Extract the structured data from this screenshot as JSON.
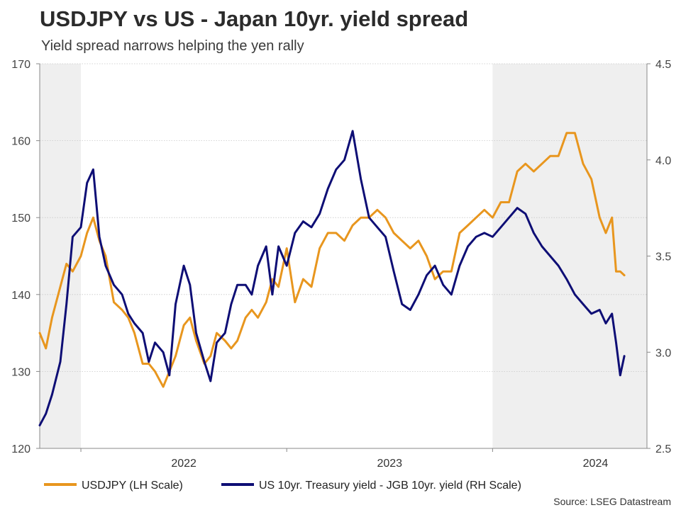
{
  "chart_data": {
    "type": "line",
    "title": "USDJPY vs US - Japan 10yr. yield spread",
    "subtitle": "Yield spread narrows helping the yen rally",
    "source": "Source: LSEG Datastream",
    "x_start": 2021.8,
    "x_end": 2024.75,
    "x_ticks": [
      {
        "label": "2022",
        "value": 2022.0
      },
      {
        "label": "2023",
        "value": 2023.0
      },
      {
        "label": "2024",
        "value": 2024.0
      }
    ],
    "shaded_periods": [
      [
        2021.8,
        2022.0
      ],
      [
        2024.0,
        2024.75
      ]
    ],
    "y_left": {
      "label": "",
      "min": 120,
      "max": 170,
      "ticks": [
        120,
        130,
        140,
        150,
        160,
        170
      ],
      "tick_labels": [
        "120",
        "130",
        "140",
        "150",
        "160",
        "170"
      ]
    },
    "y_right": {
      "label": "",
      "min": 2.5,
      "max": 4.5,
      "ticks": [
        2.5,
        3.0,
        3.5,
        4.0,
        4.5
      ],
      "tick_labels": [
        "2.5",
        "3.0",
        "3.5",
        "4.0",
        "4.5"
      ]
    },
    "grid": true,
    "legend_position": "bottom",
    "series": [
      {
        "name": "USDJPY (LH Scale)",
        "axis": "left",
        "color": "#e8961e",
        "x": [
          2021.8,
          2021.83,
          2021.86,
          2021.9,
          2021.93,
          2021.96,
          2022.0,
          2022.03,
          2022.06,
          2022.09,
          2022.12,
          2022.16,
          2022.2,
          2022.23,
          2022.26,
          2022.3,
          2022.33,
          2022.36,
          2022.4,
          2022.43,
          2022.46,
          2022.5,
          2022.53,
          2022.56,
          2022.6,
          2022.63,
          2022.66,
          2022.7,
          2022.73,
          2022.76,
          2022.8,
          2022.83,
          2022.86,
          2022.9,
          2022.93,
          2022.96,
          2023.0,
          2023.04,
          2023.08,
          2023.12,
          2023.16,
          2023.2,
          2023.24,
          2023.28,
          2023.32,
          2023.36,
          2023.4,
          2023.44,
          2023.48,
          2023.52,
          2023.56,
          2023.6,
          2023.64,
          2023.68,
          2023.72,
          2023.76,
          2023.8,
          2023.84,
          2023.88,
          2023.92,
          2023.96,
          2024.0,
          2024.04,
          2024.08,
          2024.12,
          2024.16,
          2024.2,
          2024.24,
          2024.28,
          2024.32,
          2024.36,
          2024.4,
          2024.44,
          2024.48,
          2024.52,
          2024.55,
          2024.58,
          2024.6,
          2024.62,
          2024.64
        ],
        "values": [
          135,
          133,
          137,
          141,
          144,
          143,
          145,
          148,
          150,
          147,
          145,
          139,
          138,
          137,
          135,
          131,
          131,
          130,
          128,
          130,
          132,
          136,
          137,
          134,
          131,
          132,
          135,
          134,
          133,
          134,
          137,
          138,
          137,
          139,
          142,
          141,
          146,
          139,
          142,
          141,
          146,
          148,
          148,
          147,
          149,
          150,
          150,
          151,
          150,
          148,
          147,
          146,
          147,
          145,
          142,
          143,
          143,
          148,
          149,
          150,
          151,
          150,
          152,
          152,
          156,
          157,
          156,
          157,
          158,
          158,
          161,
          161,
          157,
          155,
          150,
          148,
          150,
          143,
          143,
          142.5
        ]
      },
      {
        "name": "US 10yr. Treasury yield - JGB 10yr. yield (RH Scale)",
        "axis": "right",
        "color": "#0e0e75",
        "x": [
          2021.8,
          2021.83,
          2021.86,
          2021.9,
          2021.93,
          2021.96,
          2022.0,
          2022.03,
          2022.06,
          2022.09,
          2022.12,
          2022.16,
          2022.2,
          2022.23,
          2022.26,
          2022.3,
          2022.33,
          2022.36,
          2022.4,
          2022.43,
          2022.46,
          2022.5,
          2022.53,
          2022.56,
          2022.6,
          2022.63,
          2022.66,
          2022.7,
          2022.73,
          2022.76,
          2022.8,
          2022.83,
          2022.86,
          2022.9,
          2022.93,
          2022.96,
          2023.0,
          2023.04,
          2023.08,
          2023.12,
          2023.16,
          2023.2,
          2023.24,
          2023.28,
          2023.32,
          2023.36,
          2023.4,
          2023.44,
          2023.48,
          2023.52,
          2023.56,
          2023.6,
          2023.64,
          2023.68,
          2023.72,
          2023.76,
          2023.8,
          2023.84,
          2023.88,
          2023.92,
          2023.96,
          2024.0,
          2024.04,
          2024.08,
          2024.12,
          2024.16,
          2024.2,
          2024.24,
          2024.28,
          2024.32,
          2024.36,
          2024.4,
          2024.44,
          2024.48,
          2024.52,
          2024.55,
          2024.58,
          2024.6,
          2024.62,
          2024.64
        ],
        "values": [
          2.62,
          2.68,
          2.78,
          2.95,
          3.25,
          3.6,
          3.65,
          3.88,
          3.95,
          3.6,
          3.45,
          3.35,
          3.3,
          3.2,
          3.15,
          3.1,
          2.95,
          3.05,
          3.0,
          2.88,
          3.25,
          3.45,
          3.35,
          3.1,
          2.95,
          2.85,
          3.05,
          3.1,
          3.25,
          3.35,
          3.35,
          3.3,
          3.45,
          3.55,
          3.3,
          3.55,
          3.45,
          3.62,
          3.68,
          3.65,
          3.72,
          3.85,
          3.95,
          4.0,
          4.15,
          3.9,
          3.7,
          3.65,
          3.6,
          3.42,
          3.25,
          3.22,
          3.3,
          3.4,
          3.45,
          3.35,
          3.3,
          3.45,
          3.55,
          3.6,
          3.62,
          3.6,
          3.65,
          3.7,
          3.75,
          3.72,
          3.62,
          3.55,
          3.5,
          3.45,
          3.38,
          3.3,
          3.25,
          3.2,
          3.22,
          3.15,
          3.2,
          3.05,
          2.88,
          2.98
        ]
      }
    ]
  }
}
